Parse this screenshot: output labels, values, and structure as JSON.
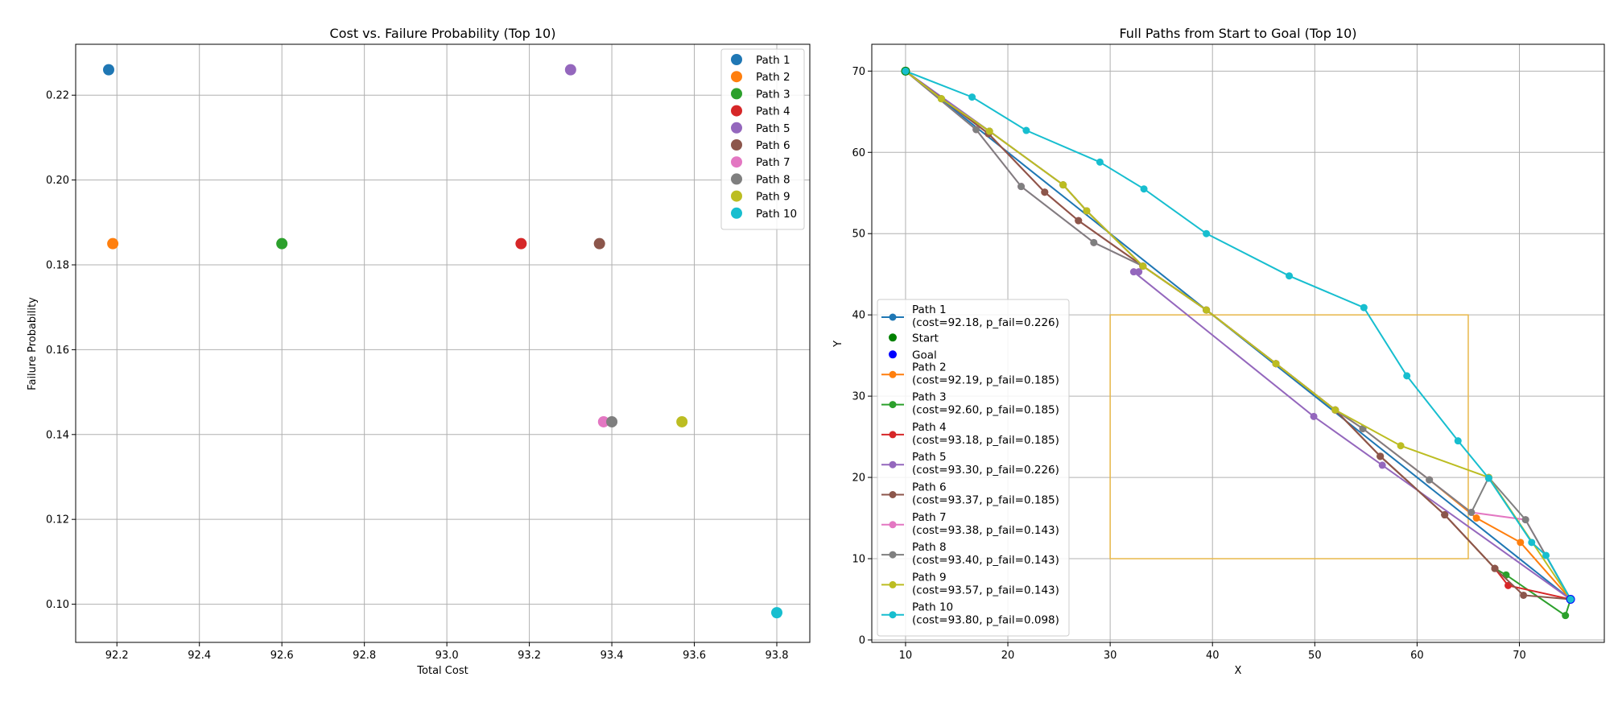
{
  "chart_data": [
    {
      "type": "scatter",
      "title": "Cost vs. Failure Probability (Top 10)",
      "xlabel": "Total Cost",
      "ylabel": "Failure Probability",
      "xlim": [
        92.1,
        93.88
      ],
      "ylim": [
        0.091,
        0.232
      ],
      "xticks": [
        "92.2",
        "92.4",
        "92.6",
        "92.8",
        "93.0",
        "93.2",
        "93.4",
        "93.6",
        "93.8"
      ],
      "yticks": [
        "0.10",
        "0.12",
        "0.14",
        "0.16",
        "0.18",
        "0.20",
        "0.22"
      ],
      "grid": true,
      "legend_position": "top-right",
      "points": [
        {
          "name": "Path 1",
          "x": 92.18,
          "y": 0.226,
          "color": "#1f77b4"
        },
        {
          "name": "Path 2",
          "x": 92.19,
          "y": 0.185,
          "color": "#ff7f0e"
        },
        {
          "name": "Path 3",
          "x": 92.6,
          "y": 0.185,
          "color": "#2ca02c"
        },
        {
          "name": "Path 4",
          "x": 93.18,
          "y": 0.185,
          "color": "#d62728"
        },
        {
          "name": "Path 5",
          "x": 93.3,
          "y": 0.226,
          "color": "#9467bd"
        },
        {
          "name": "Path 6",
          "x": 93.37,
          "y": 0.185,
          "color": "#8c564b"
        },
        {
          "name": "Path 7",
          "x": 93.38,
          "y": 0.143,
          "color": "#e377c2"
        },
        {
          "name": "Path 8",
          "x": 93.4,
          "y": 0.143,
          "color": "#7f7f7f"
        },
        {
          "name": "Path 9",
          "x": 93.57,
          "y": 0.143,
          "color": "#bcbd22"
        },
        {
          "name": "Path 10",
          "x": 93.8,
          "y": 0.098,
          "color": "#17becf"
        }
      ]
    },
    {
      "type": "line",
      "title": "Full Paths from Start to Goal (Top 10)",
      "xlabel": "X",
      "ylabel": "Y",
      "xlim": [
        6.7,
        78.3
      ],
      "ylim": [
        -0.3,
        73.3
      ],
      "xticks": [
        "10",
        "20",
        "30",
        "40",
        "50",
        "60",
        "70"
      ],
      "yticks": [
        "0",
        "10",
        "20",
        "30",
        "40",
        "50",
        "60",
        "70"
      ],
      "grid": true,
      "legend_position": "lower-left",
      "start": {
        "label": "Start",
        "x": 10,
        "y": 70,
        "color": "#008000"
      },
      "goal": {
        "label": "Goal",
        "x": 75,
        "y": 5,
        "color": "#0000ff"
      },
      "obstacle": {
        "x": [
          30,
          65
        ],
        "y": [
          10,
          40
        ],
        "color": "#e8b84a"
      },
      "series": [
        {
          "name": "Path 1",
          "label_line1": "Path 1",
          "label_line2": "(cost=92.18, p_fail=0.226)",
          "color": "#1f77b4",
          "x": [
            10,
            75
          ],
          "y": [
            70,
            5
          ]
        },
        {
          "name": "Path 2",
          "label_line1": "Path 2",
          "label_line2": "(cost=92.19, p_fail=0.185)",
          "color": "#ff7f0e",
          "x": [
            10,
            13.5,
            18.2,
            25.4,
            27.7,
            33.2,
            39.4,
            46.2,
            52.0,
            54.7,
            61.2,
            65.8,
            70.1,
            75
          ],
          "y": [
            70,
            66.6,
            62.6,
            56.0,
            52.8,
            46.0,
            40.6,
            34.0,
            28.3,
            26.0,
            19.7,
            15.0,
            12.0,
            5
          ]
        },
        {
          "name": "Path 3",
          "label_line1": "Path 3",
          "label_line2": "(cost=92.60, p_fail=0.185)",
          "color": "#2ca02c",
          "x": [
            10,
            13.5,
            18.2,
            25.4,
            27.7,
            33.2,
            39.4,
            46.2,
            52.0,
            56.4,
            62.7,
            67.6,
            68.7,
            74.5,
            75
          ],
          "y": [
            70,
            66.6,
            62.6,
            56.0,
            52.8,
            46.0,
            40.6,
            34.0,
            28.3,
            22.6,
            15.4,
            8.8,
            8.0,
            3.0,
            5
          ]
        },
        {
          "name": "Path 4",
          "label_line1": "Path 4",
          "label_line2": "(cost=93.18, p_fail=0.185)",
          "color": "#d62728",
          "x": [
            10,
            18.1,
            23.6,
            26.9,
            33.2,
            39.4,
            46.2,
            52.0,
            56.4,
            62.7,
            67.6,
            68.9,
            75
          ],
          "y": [
            70,
            62.3,
            55.1,
            51.6,
            46.0,
            40.6,
            34.0,
            28.3,
            22.6,
            15.4,
            8.8,
            6.7,
            5
          ]
        },
        {
          "name": "Path 5",
          "label_line1": "Path 5",
          "label_line2": "(cost=93.30, p_fail=0.226)",
          "color": "#9467bd",
          "x": [
            10,
            18.2,
            25.4,
            27.7,
            33.2,
            32.8,
            32.3,
            49.9,
            56.6,
            75
          ],
          "y": [
            70,
            62.6,
            56.0,
            52.8,
            46.0,
            45.3,
            45.3,
            27.5,
            21.5,
            5
          ]
        },
        {
          "name": "Path 6",
          "label_line1": "Path 6",
          "label_line2": "(cost=93.37, p_fail=0.185)",
          "color": "#8c564b",
          "x": [
            10,
            18.1,
            23.6,
            26.9,
            33.2,
            39.4,
            46.2,
            52.0,
            56.4,
            62.7,
            67.6,
            70.4,
            75
          ],
          "y": [
            70,
            62.3,
            55.1,
            51.6,
            46.0,
            40.6,
            34.0,
            28.3,
            22.6,
            15.4,
            8.8,
            5.5,
            5
          ]
        },
        {
          "name": "Path 7",
          "label_line1": "Path 7",
          "label_line2": "(cost=93.38, p_fail=0.143)",
          "color": "#e377c2",
          "x": [
            10,
            16.9,
            21.3,
            28.4,
            33.2,
            39.4,
            46.2,
            52.0,
            54.7,
            61.2,
            65.3,
            70.6,
            75
          ],
          "y": [
            70,
            62.8,
            55.8,
            48.9,
            46.0,
            40.6,
            34.0,
            28.3,
            26.0,
            19.7,
            15.7,
            14.8,
            5
          ]
        },
        {
          "name": "Path 8",
          "label_line1": "Path 8",
          "label_line2": "(cost=93.40, p_fail=0.143)",
          "color": "#7f7f7f",
          "x": [
            10,
            16.9,
            21.3,
            28.4,
            33.2,
            39.4,
            46.2,
            52.0,
            54.7,
            61.2,
            65.3,
            67.0,
            70.6,
            75
          ],
          "y": [
            70,
            62.8,
            55.8,
            48.9,
            46.0,
            40.6,
            34.0,
            28.3,
            26.0,
            19.7,
            15.7,
            20.0,
            14.8,
            5
          ]
        },
        {
          "name": "Path 9",
          "label_line1": "Path 9",
          "label_line2": "(cost=93.57, p_fail=0.143)",
          "color": "#bcbd22",
          "x": [
            10,
            13.5,
            18.2,
            25.4,
            27.7,
            33.2,
            39.4,
            46.2,
            52.0,
            58.4,
            67.0,
            75
          ],
          "y": [
            70,
            66.6,
            62.6,
            56.0,
            52.8,
            46.0,
            40.6,
            34.0,
            28.3,
            23.9,
            20.0,
            5
          ]
        },
        {
          "name": "Path 10",
          "label_line1": "Path 10",
          "label_line2": "(cost=93.80, p_fail=0.098)",
          "color": "#17becf",
          "x": [
            10,
            16.5,
            21.8,
            29.0,
            33.3,
            39.4,
            47.5,
            54.8,
            59.0,
            64.0,
            67.0,
            71.2,
            72.6,
            75
          ],
          "y": [
            70,
            66.8,
            62.7,
            58.8,
            55.5,
            50.0,
            44.8,
            40.9,
            32.5,
            24.5,
            19.9,
            12.0,
            10.4,
            5
          ]
        }
      ]
    }
  ]
}
